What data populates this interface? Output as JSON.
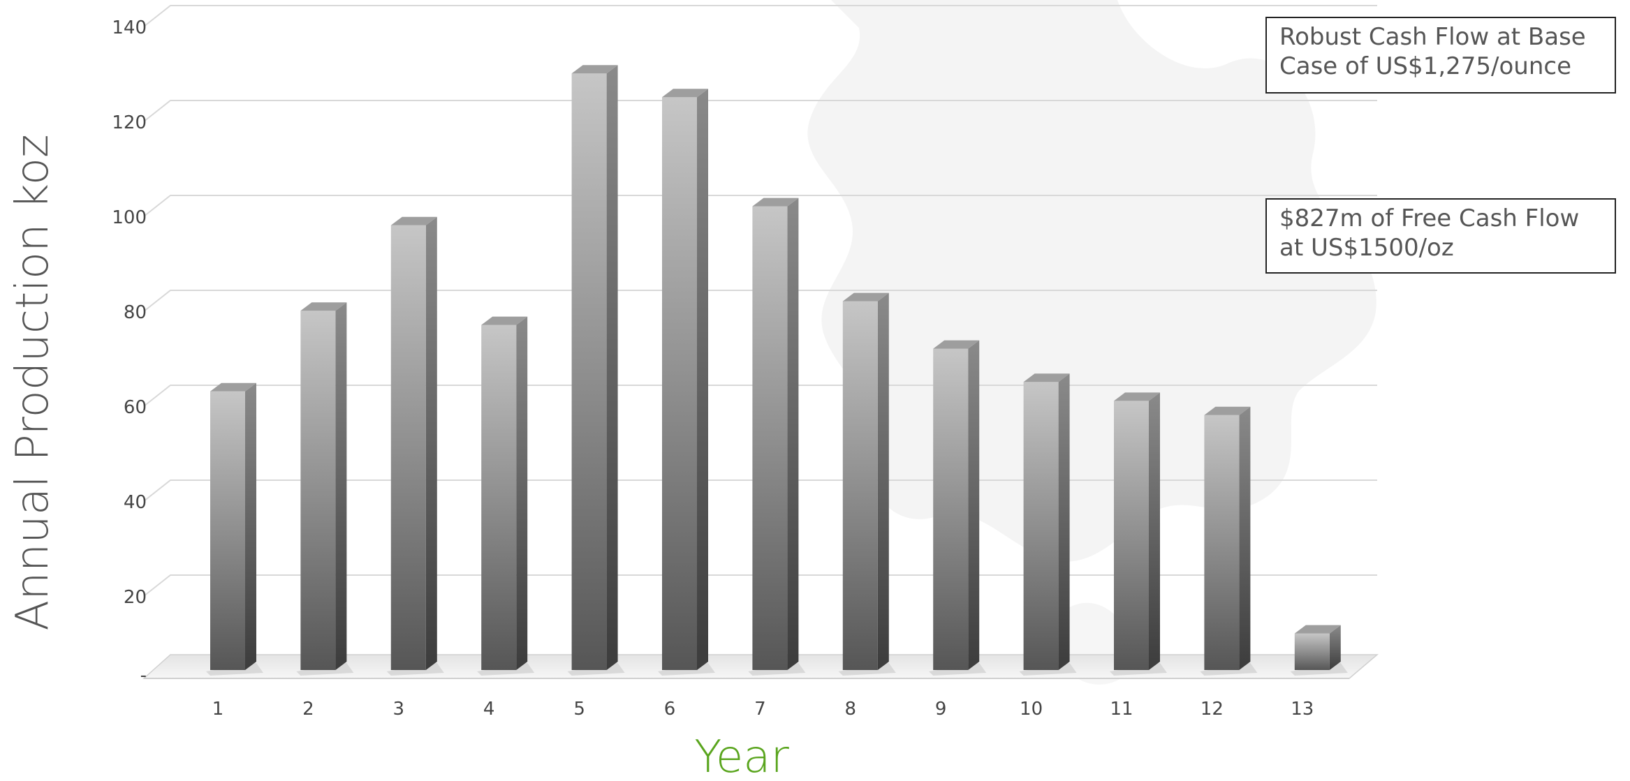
{
  "colors": {
    "accent_green": "#5aa51e",
    "bar_light": "#c4c4c4",
    "bar_dark": "#555555",
    "grid": "#d8d8d8",
    "watermark": "#f2f2f2"
  },
  "annotations": [
    {
      "text": "Robust Cash Flow at Base\nCase of US$1,275/ounce"
    },
    {
      "text": "$827m of Free Cash Flow\nat US$1500/oz"
    }
  ],
  "chart_data": {
    "type": "bar",
    "style": "3d-column",
    "title": "",
    "xlabel": "Year",
    "ylabel": "Annual Production koz",
    "categories": [
      "1",
      "2",
      "3",
      "4",
      "5",
      "6",
      "7",
      "8",
      "9",
      "10",
      "11",
      "12",
      "13"
    ],
    "values": [
      59,
      76,
      94,
      73,
      126,
      121,
      98,
      78,
      68,
      61,
      57,
      54,
      8
    ],
    "ylim": [
      0,
      140
    ],
    "yticks": [
      0,
      20,
      40,
      60,
      80,
      100,
      120,
      140
    ],
    "ytick_labels": [
      "-",
      "20",
      "40",
      "60",
      "80",
      "100",
      "120",
      "140"
    ],
    "grid": true,
    "legend": false
  }
}
